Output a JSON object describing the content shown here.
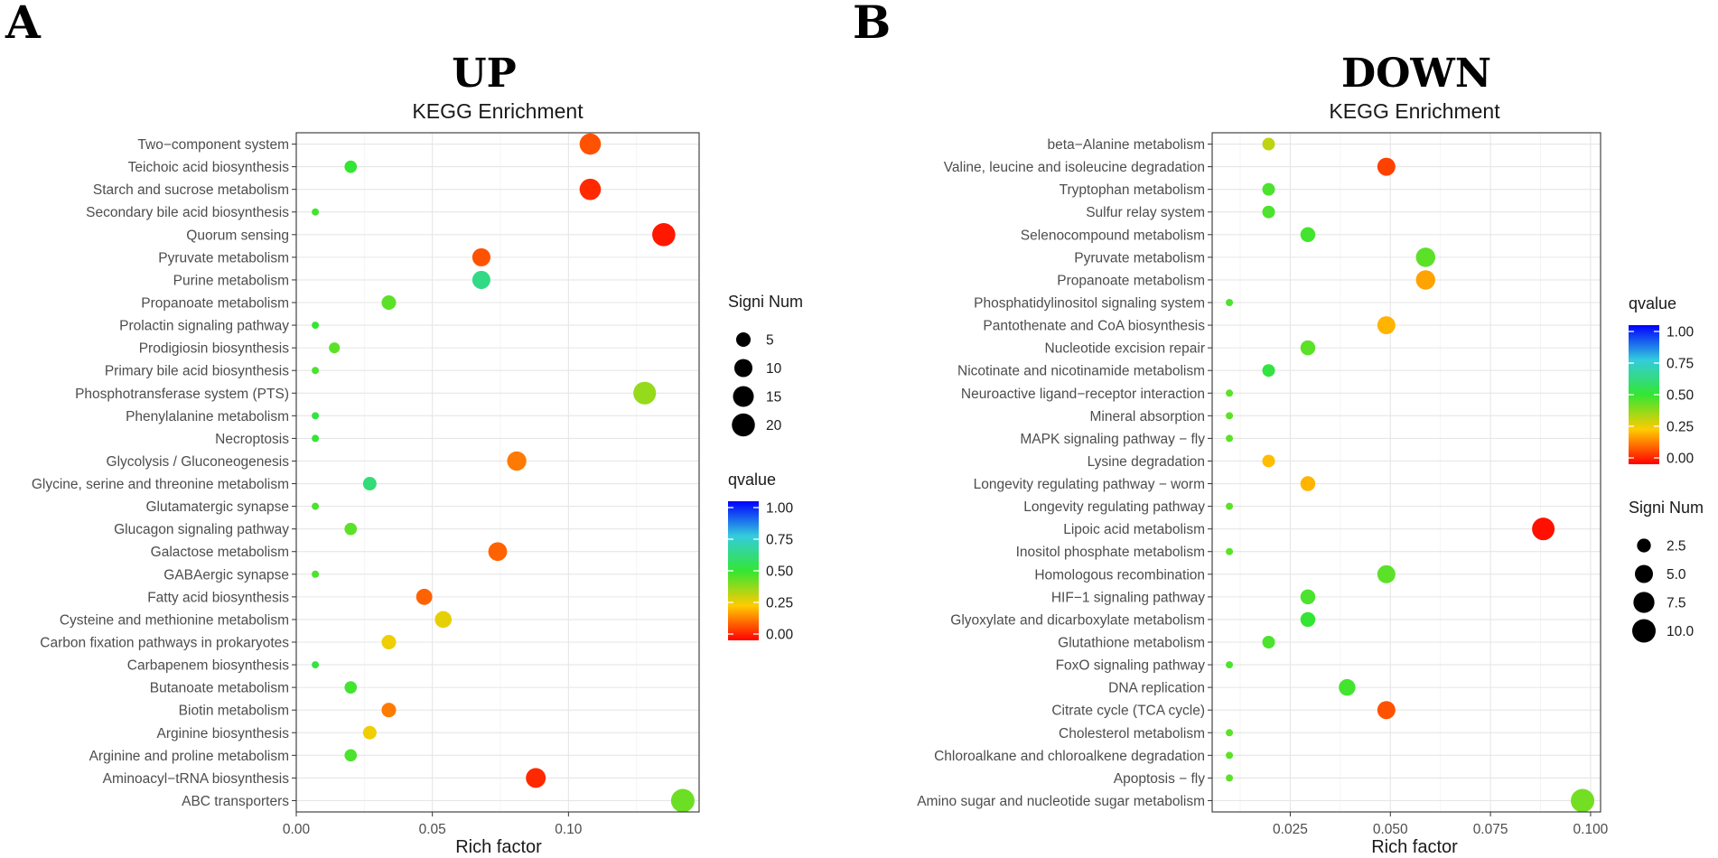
{
  "figure": {
    "panels": [
      {
        "letter": "A",
        "title": "UP"
      },
      {
        "letter": "B",
        "title": "DOWN"
      }
    ]
  },
  "chart_data": [
    {
      "type": "scatter",
      "panel": "A",
      "title": "UP",
      "subtitle": "KEGG Enrichment",
      "xlabel": "Rich factor",
      "ylabel": "",
      "xlim": [
        0,
        0.148
      ],
      "xticks": [
        0.0,
        0.05,
        0.1
      ],
      "xtick_labels": [
        "0.00",
        "0.05",
        "0.10"
      ],
      "x_minor": [
        0.025,
        0.075,
        0.125
      ],
      "categories": [
        "Two−component system",
        "Teichoic acid biosynthesis",
        "Starch and sucrose metabolism",
        "Secondary bile acid biosynthesis",
        "Quorum sensing",
        "Pyruvate metabolism",
        "Purine metabolism",
        "Propanoate metabolism",
        "Prolactin signaling pathway",
        "Prodigiosin biosynthesis",
        "Primary bile acid biosynthesis",
        "Phosphotransferase system (PTS)",
        "Phenylalanine metabolism",
        "Necroptosis",
        "Glycolysis / Gluconeogenesis",
        "Glycine, serine and threonine metabolism",
        "Glutamatergic synapse",
        "Glucagon signaling pathway",
        "Galactose metabolism",
        "GABAergic synapse",
        "Fatty acid biosynthesis",
        "Cysteine and methionine metabolism",
        "Carbon fixation pathways in prokaryotes",
        "Carbapenem biosynthesis",
        "Butanoate metabolism",
        "Biotin metabolism",
        "Arginine biosynthesis",
        "Arginine and proline metabolism",
        "Aminoacyl−tRNA biosynthesis",
        "ABC transporters"
      ],
      "rich_factor": [
        0.108,
        0.02,
        0.108,
        0.007,
        0.135,
        0.068,
        0.068,
        0.034,
        0.007,
        0.014,
        0.007,
        0.128,
        0.007,
        0.007,
        0.081,
        0.027,
        0.007,
        0.02,
        0.074,
        0.007,
        0.047,
        0.054,
        0.034,
        0.007,
        0.02,
        0.034,
        0.027,
        0.02,
        0.088,
        0.142
      ],
      "signi_num": [
        16,
        3,
        16,
        1,
        20,
        10,
        10,
        5,
        1,
        2,
        1,
        19,
        1,
        1,
        12,
        4,
        1,
        3,
        11,
        1,
        7,
        8,
        5,
        1,
        3,
        5,
        4,
        3,
        13,
        21
      ],
      "qvalue": [
        0.1,
        0.5,
        0.05,
        0.48,
        0.03,
        0.1,
        0.62,
        0.45,
        0.5,
        0.45,
        0.47,
        0.38,
        0.52,
        0.5,
        0.15,
        0.6,
        0.47,
        0.45,
        0.12,
        0.47,
        0.12,
        0.28,
        0.27,
        0.52,
        0.48,
        0.15,
        0.27,
        0.47,
        0.05,
        0.43
      ],
      "size_legend": {
        "title": "Signi Num",
        "values": [
          5,
          10,
          15,
          20
        ],
        "labels": [
          "5",
          "10",
          "15",
          "20"
        ]
      },
      "color_legend": {
        "title": "qvalue",
        "values": [
          1.0,
          0.75,
          0.5,
          0.25,
          0.0
        ],
        "labels": [
          "1.00",
          "0.75",
          "0.50",
          "0.25",
          "0.00"
        ]
      },
      "size_range": [
        1,
        21
      ],
      "radius_range": [
        4,
        13
      ]
    },
    {
      "type": "scatter",
      "panel": "B",
      "title": "DOWN",
      "subtitle": "KEGG Enrichment",
      "xlabel": "Rich factor",
      "ylabel": "",
      "xlim": [
        0.0055,
        0.1025
      ],
      "xticks": [
        0.025,
        0.05,
        0.075,
        0.1
      ],
      "xtick_labels": [
        "0.025",
        "0.050",
        "0.075",
        "0.100"
      ],
      "x_minor": [
        0.0125,
        0.0375,
        0.0625,
        0.0875
      ],
      "categories": [
        "beta−Alanine metabolism",
        "Valine, leucine and isoleucine degradation",
        "Tryptophan metabolism",
        "Sulfur relay system",
        "Selenocompound metabolism",
        "Pyruvate metabolism",
        "Propanoate metabolism",
        "Phosphatidylinositol signaling system",
        "Pantothenate and CoA biosynthesis",
        "Nucleotide excision repair",
        "Nicotinate and nicotinamide metabolism",
        "Neuroactive ligand−receptor interaction",
        "Mineral absorption",
        "MAPK signaling pathway − fly",
        "Lysine degradation",
        "Longevity regulating pathway − worm",
        "Longevity regulating pathway",
        "Lipoic acid metabolism",
        "Inositol phosphate metabolism",
        "Homologous recombination",
        "HIF−1 signaling pathway",
        "Glyoxylate and dicarboxylate metabolism",
        "Glutathione metabolism",
        "FoxO signaling pathway",
        "DNA replication",
        "Citrate cycle (TCA cycle)",
        "Cholesterol metabolism",
        "Chloroalkane and chloroalkene degradation",
        "Apoptosis − fly",
        "Amino sugar and nucleotide sugar metabolism"
      ],
      "rich_factor": [
        0.0196,
        0.049,
        0.0196,
        0.0196,
        0.0294,
        0.0588,
        0.0588,
        0.0098,
        0.049,
        0.0294,
        0.0196,
        0.0098,
        0.0098,
        0.0098,
        0.0196,
        0.0294,
        0.0098,
        0.0882,
        0.0098,
        0.049,
        0.0294,
        0.0294,
        0.0196,
        0.0098,
        0.0392,
        0.049,
        0.0098,
        0.0098,
        0.0098,
        0.098
      ],
      "signi_num": [
        2,
        5,
        2,
        2,
        3,
        6,
        6,
        1,
        5,
        3,
        2,
        1,
        1,
        1,
        2,
        3,
        1,
        9,
        1,
        5,
        3,
        3,
        2,
        1,
        4,
        5,
        1,
        1,
        1,
        10
      ],
      "qvalue": [
        0.33,
        0.08,
        0.47,
        0.47,
        0.48,
        0.45,
        0.2,
        0.47,
        0.22,
        0.45,
        0.52,
        0.45,
        0.45,
        0.45,
        0.23,
        0.22,
        0.45,
        0.02,
        0.45,
        0.45,
        0.47,
        0.5,
        0.47,
        0.47,
        0.48,
        0.1,
        0.45,
        0.45,
        0.45,
        0.42
      ],
      "size_legend": {
        "title": "Signi Num",
        "values": [
          2.5,
          5.0,
          7.5,
          10.0
        ],
        "labels": [
          "2.5",
          "5.0",
          "7.5",
          "10.0"
        ]
      },
      "color_legend": {
        "title": "qvalue",
        "values": [
          1.0,
          0.75,
          0.5,
          0.25,
          0.0
        ],
        "labels": [
          "1.00",
          "0.75",
          "0.50",
          "0.25",
          "0.00"
        ]
      },
      "size_range": [
        1,
        10
      ],
      "radius_range": [
        4,
        13
      ]
    }
  ]
}
